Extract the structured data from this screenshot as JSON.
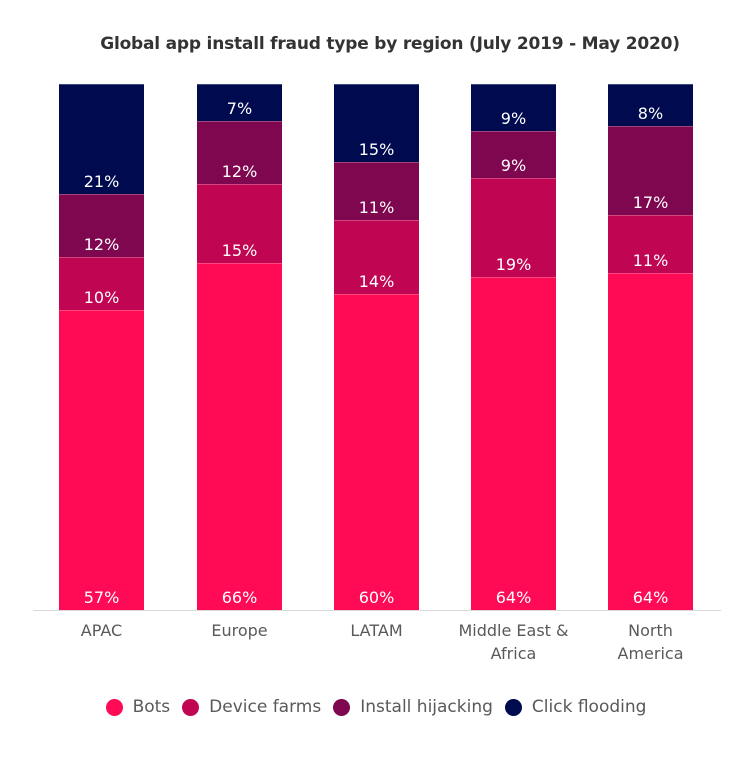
{
  "chart_data": {
    "type": "bar",
    "stacked": true,
    "normalized": true,
    "title": "Global app install fraud type by region (July 2019 - May 2020)",
    "xlabel": "",
    "ylabel": "",
    "ylim": [
      0,
      100
    ],
    "grid": false,
    "legend_position": "bottom",
    "categories": [
      "APAC",
      "Europe",
      "LATAM",
      "Middle East & Africa",
      "North America"
    ],
    "category_labels": [
      [
        "APAC"
      ],
      [
        "Europe"
      ],
      [
        "LATAM"
      ],
      [
        "Middle East &",
        "Africa"
      ],
      [
        "North",
        "America"
      ]
    ],
    "series": [
      {
        "name": "Bots",
        "color": "#ff0a55",
        "values": [
          57,
          66,
          60,
          64,
          64
        ],
        "labels": [
          "57%",
          "66%",
          "60%",
          "64%",
          "64%"
        ]
      },
      {
        "name": "Device farms",
        "color": "#c00552",
        "values": [
          10,
          15,
          14,
          19,
          11
        ],
        "labels": [
          "10%",
          "15%",
          "14%",
          "19%",
          "11%"
        ]
      },
      {
        "name": "Install hijacking",
        "color": "#7e074f",
        "values": [
          12,
          12,
          11,
          9,
          17
        ],
        "labels": [
          "12%",
          "12%",
          "11%",
          "9%",
          "17%"
        ]
      },
      {
        "name": "Click flooding",
        "color": "#000a4e",
        "values": [
          21,
          7,
          15,
          9,
          8
        ],
        "labels": [
          "21%",
          "7%",
          "15%",
          "9%",
          "8%"
        ]
      }
    ]
  }
}
